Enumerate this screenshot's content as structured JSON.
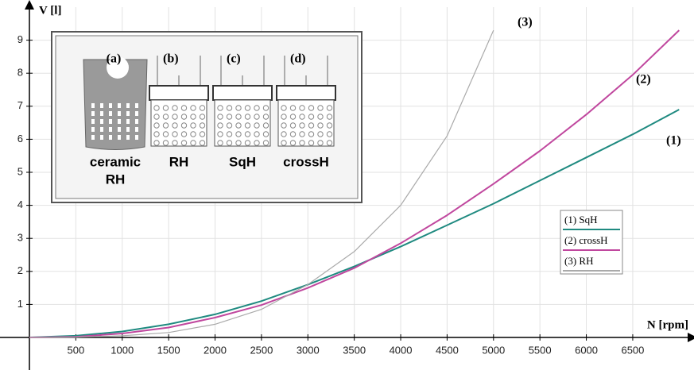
{
  "chart_data": {
    "type": "line",
    "x_label": "N [rpm]",
    "y_label": "V [l]",
    "x": [
      0,
      500,
      1000,
      1500,
      2000,
      2500,
      3000,
      3500,
      4000,
      4500,
      5000,
      5500,
      6000,
      6500,
      7000
    ],
    "series": [
      {
        "name": "(1)  SqH",
        "color": "#1f8a80",
        "values": [
          0,
          0.05,
          0.18,
          0.4,
          0.7,
          1.1,
          1.6,
          2.15,
          2.75,
          3.4,
          4.05,
          4.75,
          5.45,
          6.15,
          6.9
        ]
      },
      {
        "name": "(2)  crossH",
        "color": "#c0479e",
        "values": [
          0,
          0.02,
          0.12,
          0.3,
          0.6,
          0.98,
          1.5,
          2.1,
          2.85,
          3.7,
          4.65,
          5.65,
          6.75,
          7.95,
          9.3
        ]
      },
      {
        "name": "(3)  RH",
        "color": "#aaaaaa",
        "values": [
          0,
          0.01,
          0.05,
          0.15,
          0.4,
          0.85,
          1.6,
          2.6,
          4.0,
          6.1,
          9.3,
          null,
          null,
          null,
          null
        ]
      }
    ],
    "curve_labels": [
      "(1)",
      "(2)",
      "(3)"
    ],
    "xlim": [
      0,
      7160
    ],
    "ylim": [
      0,
      10
    ],
    "xticks": [
      500,
      1000,
      1500,
      2000,
      2500,
      3000,
      3500,
      4000,
      4500,
      5000,
      5500,
      6000,
      6500
    ],
    "yticks": [
      1,
      2,
      3,
      4,
      5,
      6,
      7,
      8,
      9
    ],
    "grid": true,
    "legend": "right",
    "inset": {
      "panels": [
        "(a)",
        "(b)",
        "(c)",
        "(d)"
      ],
      "names": [
        "ceramic",
        "RH",
        "SqH",
        "crossH"
      ],
      "ceramic_second_line": "RH"
    }
  }
}
